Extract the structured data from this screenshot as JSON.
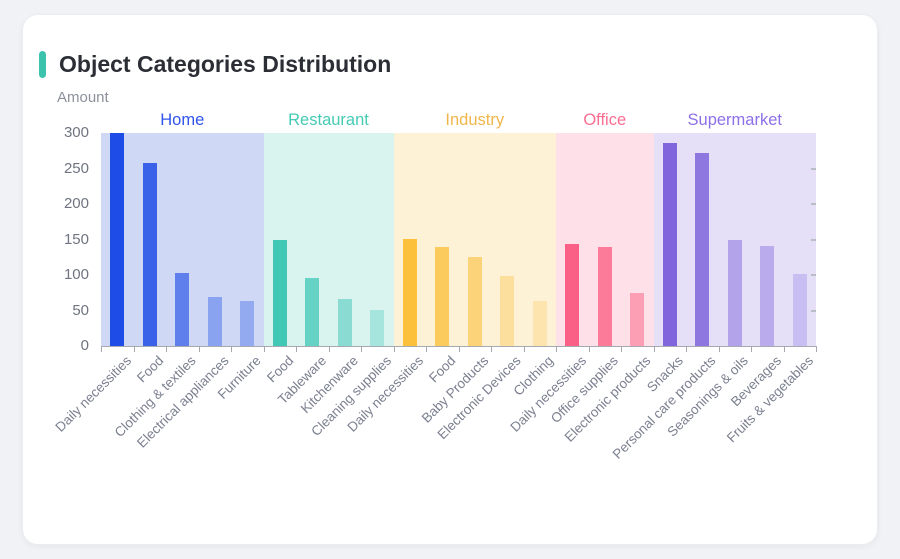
{
  "page": {
    "background": "#f0f2f5",
    "card_background": "#ffffff"
  },
  "header": {
    "title": "Object Categories Distribution",
    "accent_color": "#3cc3ae"
  },
  "chart_data": {
    "type": "bar",
    "title": "Object Categories Distribution",
    "xlabel": "",
    "ylabel": "Amount",
    "ylim": [
      0,
      300
    ],
    "y_ticks": [
      300,
      250,
      200,
      150,
      100,
      50,
      0
    ],
    "grid": false,
    "legend_position": "group headers above plot, colored per group",
    "axis_colors": {
      "line": "#a6a9b0",
      "y_tick_label": "#6f7480",
      "x_label": "#7b8090",
      "y_name": "#8c919b"
    },
    "groups": [
      {
        "name": "Home",
        "label_color": "#2f54eb",
        "band_color": "#cfd9f6",
        "categories": [
          "Daily necessities",
          "Food",
          "Clothing & textiles",
          "Electrical appliances",
          "Furniture"
        ],
        "values": [
          300,
          258,
          103,
          69,
          64
        ],
        "bar_colors": [
          "#1d4ce6",
          "#3a62e8",
          "#5f80ec",
          "#8aa3f0",
          "#93aaf1"
        ]
      },
      {
        "name": "Restaurant",
        "label_color": "#45cbb5",
        "band_color": "#d9f3ef",
        "categories": [
          "Food",
          "Tableware",
          "Kitchenware",
          "Cleaning supplies"
        ],
        "values": [
          149,
          96,
          66,
          51
        ],
        "bar_colors": [
          "#41c8b4",
          "#65d2c6",
          "#8adcd3",
          "#a5e5dd"
        ]
      },
      {
        "name": "Industry",
        "label_color": "#f0b64a",
        "band_color": "#fdf2d6",
        "categories": [
          "Daily necessities",
          "Food",
          "Baby Products",
          "Electronic Devices",
          "Clothing"
        ],
        "values": [
          151,
          140,
          126,
          99,
          64
        ],
        "bar_colors": [
          "#fcc03a",
          "#fccb5e",
          "#fcd378",
          "#fddf9d",
          "#fde4ae"
        ]
      },
      {
        "name": "Office",
        "label_color": "#fa6e92",
        "band_color": "#fde0e8",
        "categories": [
          "Daily necessities",
          "Office supplies",
          "Electronic products"
        ],
        "values": [
          143,
          140,
          75
        ],
        "bar_colors": [
          "#fa5f85",
          "#fb7b99",
          "#fc9fb5"
        ]
      },
      {
        "name": "Supermarket",
        "label_color": "#8d6fe8",
        "band_color": "#e5e0f8",
        "categories": [
          "Snacks",
          "Personal care products",
          "Seasonings & oils",
          "Beverages",
          "Fruits & vegetables"
        ],
        "values": [
          286,
          272,
          149,
          141,
          101
        ],
        "bar_colors": [
          "#8165dc",
          "#8f77e0",
          "#b2a3ea",
          "#b9abec",
          "#c9bef1"
        ]
      }
    ]
  }
}
